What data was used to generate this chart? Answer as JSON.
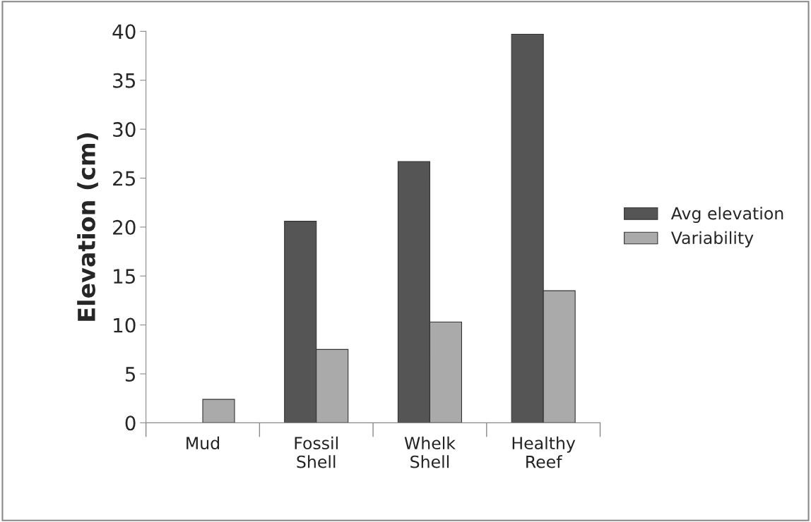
{
  "chart_data": {
    "type": "bar",
    "ylabel": "Elevation (cm)",
    "categories": [
      "Mud",
      "Fossil\nShell",
      "Whelk\nShell",
      "Healthy\nReef"
    ],
    "series": [
      {
        "name": "Avg elevation",
        "color": "#555555",
        "values": [
          null,
          20.6,
          26.7,
          39.7
        ]
      },
      {
        "name": "Variability",
        "color": "#aaaaaa",
        "values": [
          2.4,
          7.5,
          10.3,
          13.5
        ]
      }
    ],
    "ylim": [
      0,
      40
    ],
    "yticks": [
      0,
      5,
      10,
      15,
      20,
      25,
      30,
      35,
      40
    ],
    "grid": false,
    "legend": "right"
  }
}
